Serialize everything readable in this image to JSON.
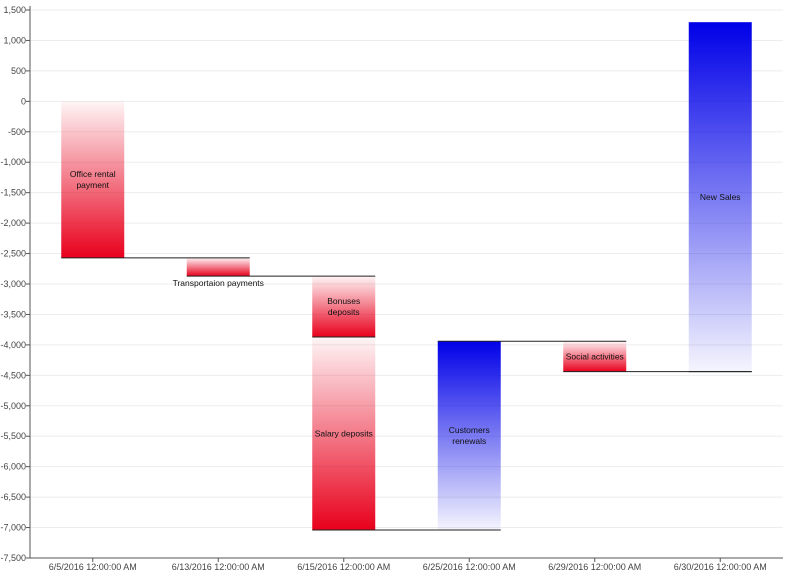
{
  "chart_data": {
    "type": "waterfall",
    "title": "",
    "xlabel": "",
    "ylabel": "",
    "ylim": [
      -7500,
      1500
    ],
    "ytick_step": 500,
    "yticks": [
      "1,500",
      "1,000",
      "500",
      "0",
      "-500",
      "-1,000",
      "-1,500",
      "-2,000",
      "-2,500",
      "-3,000",
      "-3,500",
      "-4,000",
      "-4,500",
      "-5,000",
      "-5,500",
      "-6,000",
      "-6,500",
      "-7,000",
      "-7,500"
    ],
    "categories": [
      "6/5/2016 12:00:00 AM",
      "6/13/2016 12:00:00 AM",
      "6/15/2016 12:00:00 AM",
      "6/25/2016 12:00:00 AM",
      "6/29/2016 12:00:00 AM",
      "6/30/2016 12:00:00 AM"
    ],
    "steps": [
      {
        "category_index": 0,
        "label": [
          "Office rental",
          "payment"
        ],
        "start": 0,
        "value": -2570,
        "color": "#e8001c"
      },
      {
        "category_index": 1,
        "label": [
          "Transportaion payments"
        ],
        "start": -2570,
        "value": -300,
        "color": "#e8001c",
        "label_position": "below"
      },
      {
        "category_index": 2,
        "label": [
          "Bonuses",
          "deposits"
        ],
        "start": -2870,
        "value": -1000,
        "color": "#e8001c"
      },
      {
        "category_index": 2,
        "label": [
          "Salary deposits"
        ],
        "start": -3870,
        "value": -3170,
        "color": "#e8001c"
      },
      {
        "category_index": 3,
        "label": [
          "Customers",
          "renewals"
        ],
        "start": -7040,
        "value": 3100,
        "color": "#0000e8"
      },
      {
        "category_index": 4,
        "label": [
          "Social activities"
        ],
        "start": -3940,
        "value": -500,
        "color": "#e8001c"
      },
      {
        "category_index": 5,
        "label": [
          "New Sales"
        ],
        "start": -4440,
        "value": 5740,
        "color": "#0000e8"
      }
    ],
    "grid": true
  }
}
